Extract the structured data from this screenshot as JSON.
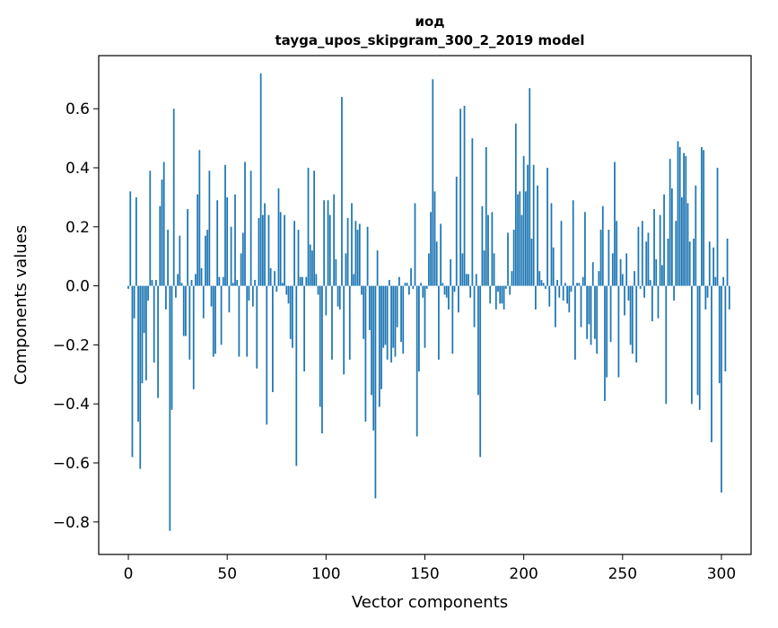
{
  "chart_data": {
    "type": "bar",
    "title": "иод",
    "subtitle": "tayga_upos_skipgram_300_2_2019 model",
    "xlabel": "Vector components",
    "ylabel": "Components values",
    "xlim": [
      -15,
      315
    ],
    "ylim": [
      -0.91,
      0.78
    ],
    "xticks": [
      0,
      50,
      100,
      150,
      200,
      250,
      300
    ],
    "xtick_labels": [
      "0",
      "50",
      "100",
      "150",
      "200",
      "250",
      "300"
    ],
    "yticks": [
      -0.8,
      -0.6,
      -0.4,
      -0.2,
      0.0,
      0.2,
      0.4,
      0.6
    ],
    "ytick_labels": [
      "−0.8",
      "−0.6",
      "−0.4",
      "−0.2",
      "0.0",
      "0.2",
      "0.4",
      "0.6"
    ],
    "grid": false,
    "bar_color": "#1f77b4",
    "values": [
      -0.01,
      0.32,
      -0.58,
      -0.11,
      0.3,
      -0.46,
      -0.62,
      -0.33,
      -0.16,
      -0.32,
      -0.05,
      0.39,
      0.02,
      -0.26,
      0.02,
      -0.38,
      0.27,
      0.36,
      0.42,
      -0.08,
      0.19,
      -0.83,
      -0.42,
      0.6,
      -0.04,
      0.04,
      0.17,
      0.01,
      -0.17,
      -0.17,
      0.26,
      -0.25,
      0.02,
      -0.35,
      0.04,
      0.31,
      0.46,
      0.06,
      -0.11,
      0.17,
      0.19,
      0.39,
      -0.07,
      -0.24,
      -0.23,
      0.29,
      0.03,
      -0.2,
      0.03,
      0.41,
      0.3,
      -0.09,
      0.2,
      0.01,
      0.31,
      0.02,
      -0.24,
      0.11,
      0.18,
      0.42,
      -0.24,
      -0.05,
      0.39,
      -0.07,
      0.02,
      -0.28,
      0.23,
      0.72,
      0.24,
      0.28,
      -0.47,
      0.24,
      0.06,
      -0.36,
      0.05,
      -0.02,
      0.33,
      0.25,
      0.01,
      0.24,
      -0.03,
      -0.06,
      -0.18,
      -0.21,
      0.22,
      -0.61,
      0.19,
      0.03,
      0.03,
      -0.29,
      0.03,
      0.4,
      0.14,
      0.12,
      0.39,
      0.04,
      -0.03,
      -0.41,
      -0.5,
      0.29,
      -0.1,
      0.29,
      0.24,
      -0.25,
      0.31,
      0.09,
      -0.07,
      -0.08,
      0.64,
      -0.3,
      0.11,
      0.23,
      -0.25,
      0.28,
      0.04,
      0.22,
      0.19,
      0.21,
      -0.03,
      -0.18,
      -0.46,
      0.2,
      -0.15,
      -0.37,
      -0.49,
      -0.72,
      0.12,
      -0.41,
      -0.35,
      -0.21,
      -0.2,
      -0.25,
      0.02,
      -0.26,
      -0.21,
      -0.24,
      -0.14,
      0.03,
      -0.19,
      -0.23,
      0.01,
      0.01,
      -0.03,
      0.06,
      -0.01,
      0.28,
      -0.51,
      -0.29,
      0.01,
      -0.04,
      -0.21,
      -0.01,
      0.11,
      0.25,
      0.7,
      0.32,
      0.15,
      -0.25,
      0.21,
      0.01,
      -0.03,
      -0.04,
      -0.08,
      0.09,
      -0.23,
      -0.02,
      0.37,
      -0.09,
      0.6,
      0.11,
      0.61,
      0.04,
      0.04,
      -0.04,
      0.5,
      -0.14,
      0.04,
      -0.37,
      -0.58,
      0.27,
      0.12,
      0.47,
      0.24,
      -0.06,
      0.25,
      0.11,
      -0.08,
      -0.02,
      -0.06,
      -0.06,
      -0.08,
      -0.01,
      0.18,
      -0.03,
      0.05,
      0.19,
      0.55,
      0.31,
      0.32,
      0.24,
      0.44,
      0.32,
      0.41,
      0.67,
      0.16,
      0.41,
      -0.08,
      0.34,
      0.05,
      0.02,
      0.01,
      -0.01,
      0.4,
      -0.07,
      0.28,
      0.13,
      -0.14,
      0.02,
      -0.04,
      0.22,
      -0.05,
      0.01,
      -0.06,
      -0.09,
      -0.02,
      0.29,
      -0.25,
      0.01,
      0.01,
      -0.14,
      0.03,
      0.25,
      -0.18,
      -0.13,
      -0.2,
      0.08,
      -0.18,
      -0.23,
      0.05,
      0.19,
      0.27,
      -0.39,
      -0.31,
      0.19,
      -0.19,
      0.11,
      0.42,
      0.22,
      -0.31,
      0.09,
      0.04,
      -0.1,
      0.11,
      -0.05,
      -0.2,
      -0.23,
      0.05,
      -0.26,
      0.2,
      -0.01,
      0.22,
      -0.04,
      0.15,
      0.18,
      0.02,
      -0.12,
      0.26,
      0.09,
      -0.11,
      0.24,
      0.07,
      0.31,
      -0.4,
      0.16,
      0.43,
      0.33,
      -0.05,
      0.22,
      0.49,
      0.47,
      0.3,
      0.45,
      0.44,
      0.28,
      0.15,
      -0.4,
      0.16,
      0.34,
      -0.37,
      -0.42,
      0.47,
      0.46,
      -0.08,
      -0.04,
      0.15,
      -0.53,
      0.13,
      0.03,
      0.4,
      -0.33,
      -0.7,
      0.03,
      -0.29,
      0.16,
      -0.08
    ]
  }
}
